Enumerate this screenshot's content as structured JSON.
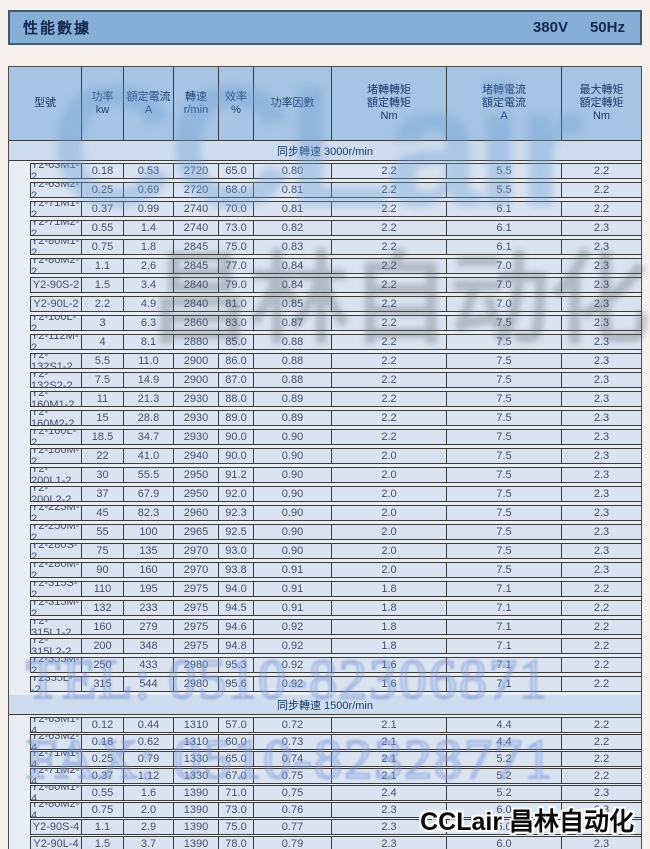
{
  "title_bar": {
    "title": "性能數據",
    "voltage": "380V",
    "frequency": "50Hz"
  },
  "table": {
    "columns": [
      {
        "label": "型號"
      },
      {
        "label": "功率\nkw"
      },
      {
        "label": "額定電流\nA"
      },
      {
        "label": "轉速\nr/min"
      },
      {
        "label": "效率\n%"
      },
      {
        "label": "功率因數"
      },
      {
        "label": "堵轉轉矩\n額定轉矩\nNm"
      },
      {
        "label": "堵轉電流\n額定電流\nA"
      },
      {
        "label": "最大轉矩\n額定轉矩\nNm"
      }
    ],
    "sections": [
      {
        "header": "同步轉速 3000r/min",
        "rows": [
          [
            "Y2-63M1-2",
            "0.18",
            "0.53",
            "2720",
            "65.0",
            "0.80",
            "2.2",
            "5.5",
            "2.2"
          ],
          [
            "Y2-63M2-2",
            "0.25",
            "0.69",
            "2720",
            "68.0",
            "0.81",
            "2.2",
            "5.5",
            "2.2"
          ],
          [
            "Y2-71M1-2",
            "0.37",
            "0.99",
            "2740",
            "70.0",
            "0.81",
            "2.2",
            "6.1",
            "2.2"
          ],
          [
            "Y2-71M2-2",
            "0.55",
            "1.4",
            "2740",
            "73.0",
            "0.82",
            "2.2",
            "6.1",
            "2.3"
          ],
          [
            "Y2-80M1-2",
            "0.75",
            "1.8",
            "2845",
            "75.0",
            "0.83",
            "2.2",
            "6.1",
            "2.3"
          ],
          [
            "Y2-80M2-2",
            "1.1",
            "2.6",
            "2845",
            "77.0",
            "0.84",
            "2.2",
            "7.0",
            "2.3"
          ],
          [
            "Y2-90S-2",
            "1.5",
            "3.4",
            "2840",
            "79.0",
            "0.84",
            "2.2",
            "7.0",
            "2.3"
          ],
          [
            "Y2-90L-2",
            "2.2",
            "4.9",
            "2840",
            "81.0",
            "0.85",
            "2.2",
            "7.0",
            "2.3"
          ],
          [
            "Y2-100L-2",
            "3",
            "6.3",
            "2860",
            "83.0",
            "0.87",
            "2.2",
            "7.5",
            "2.3"
          ],
          [
            "Y2-112M-2",
            "4",
            "8.1",
            "2880",
            "85.0",
            "0.88",
            "2.2",
            "7.5",
            "2.3"
          ],
          [
            "Y2-132S1-2",
            "5.5",
            "11.0",
            "2900",
            "86.0",
            "0.88",
            "2.2",
            "7.5",
            "2.3"
          ],
          [
            "Y2-132S2-2",
            "7.5",
            "14.9",
            "2900",
            "87.0",
            "0.88",
            "2.2",
            "7.5",
            "2.3"
          ],
          [
            "Y2-160M1-2",
            "11",
            "21.3",
            "2930",
            "88.0",
            "0.89",
            "2.2",
            "7.5",
            "2.3"
          ],
          [
            "Y2-160M2-2",
            "15",
            "28.8",
            "2930",
            "89.0",
            "0.89",
            "2.2",
            "7.5",
            "2.3"
          ],
          [
            "Y2-160L-2",
            "18.5",
            "34.7",
            "2930",
            "90.0",
            "0.90",
            "2.2",
            "7.5",
            "2.3"
          ],
          [
            "Y2-180M-2",
            "22",
            "41.0",
            "2940",
            "90.0",
            "0.90",
            "2.0",
            "7.5",
            "2.3"
          ],
          [
            "Y2-200L1-2",
            "30",
            "55.5",
            "2950",
            "91.2",
            "0.90",
            "2.0",
            "7.5",
            "2.3"
          ],
          [
            "Y2-200L2-2",
            "37",
            "67.9",
            "2950",
            "92.0",
            "0.90",
            "2.0",
            "7.5",
            "2.3"
          ],
          [
            "Y2-225M-2",
            "45",
            "82.3",
            "2960",
            "92.3",
            "0.90",
            "2.0",
            "7.5",
            "2.3"
          ],
          [
            "Y2-250M-2",
            "55",
            "100",
            "2965",
            "92.5",
            "0.90",
            "2.0",
            "7.5",
            "2.3"
          ],
          [
            "Y2-280S-2",
            "75",
            "135",
            "2970",
            "93.0",
            "0.90",
            "2.0",
            "7.5",
            "2.3"
          ],
          [
            "Y2-280M-2",
            "90",
            "160",
            "2970",
            "93.8",
            "0.91",
            "2.0",
            "7.5",
            "2.3"
          ],
          [
            "Y2-315S-2",
            "110",
            "195",
            "2975",
            "94.0",
            "0.91",
            "1.8",
            "7.1",
            "2.2"
          ],
          [
            "Y2-315M-2",
            "132",
            "233",
            "2975",
            "94.5",
            "0.91",
            "1.8",
            "7.1",
            "2.2"
          ],
          [
            "Y2-315L1-2",
            "160",
            "279",
            "2975",
            "94.6",
            "0.92",
            "1.8",
            "7.1",
            "2.2"
          ],
          [
            "Y2-315L2-2",
            "200",
            "348",
            "2975",
            "94.8",
            "0.92",
            "1.8",
            "7.1",
            "2.2"
          ],
          [
            "Y2-355M-2",
            "250",
            "433",
            "2980",
            "95.3",
            "0.92",
            "1.6",
            "7.1",
            "2.2"
          ],
          [
            "Y2355L--2",
            "315",
            "544",
            "2980",
            "95.6",
            "0.92",
            "1.6",
            "7.1",
            "2.2"
          ]
        ]
      },
      {
        "header": "同步轉速 1500r/min",
        "rows": [
          [
            "Y2-63M1-4",
            "0.12",
            "0.44",
            "1310",
            "57.0",
            "0.72",
            "2.1",
            "4.4",
            "2.2"
          ],
          [
            "Y2-63M2-4",
            "0.18",
            "0.62",
            "1310",
            "60.0",
            "0.73",
            "2.1",
            "4.4",
            "2.2"
          ],
          [
            "Y2-71M1-4",
            "0.25",
            "0.79",
            "1330",
            "65.0",
            "0.74",
            "2.1",
            "5.2",
            "2.2"
          ],
          [
            "Y2-71M2-4",
            "0.37",
            "1.12",
            "1330",
            "67.0",
            "0.75",
            "2.1",
            "5.2",
            "2.2"
          ],
          [
            "Y2-80M1-4",
            "0.55",
            "1.6",
            "1390",
            "71.0",
            "0.75",
            "2.4",
            "5.2",
            "2.3"
          ],
          [
            "Y2-80M2-4",
            "0.75",
            "2.0",
            "1390",
            "73.0",
            "0.76",
            "2.3",
            "6.0",
            "2.3"
          ],
          [
            "Y2-90S-4",
            "1.1",
            "2.9",
            "1390",
            "75.0",
            "0.77",
            "2.3",
            "6.0",
            "2.3"
          ],
          [
            "Y2-90L-4",
            "1.5",
            "3.7",
            "1390",
            "78.0",
            "0.79",
            "2.3",
            "6.0",
            "2.3"
          ]
        ]
      }
    ]
  },
  "watermarks": {
    "logo": "CCLair",
    "brand_large": "昌林自动化",
    "tel": "TEL: 0510-82306871",
    "fax": "FAX: 0510-82328771",
    "footer": "CCLair 昌林自动化"
  },
  "colors": {
    "title_bar_bg": "#87aed6",
    "header_bg": "#a6c4e3",
    "row_bg": "#dae3f0",
    "section_bg": "#cddcee",
    "text_navy": "#1c3a66"
  }
}
